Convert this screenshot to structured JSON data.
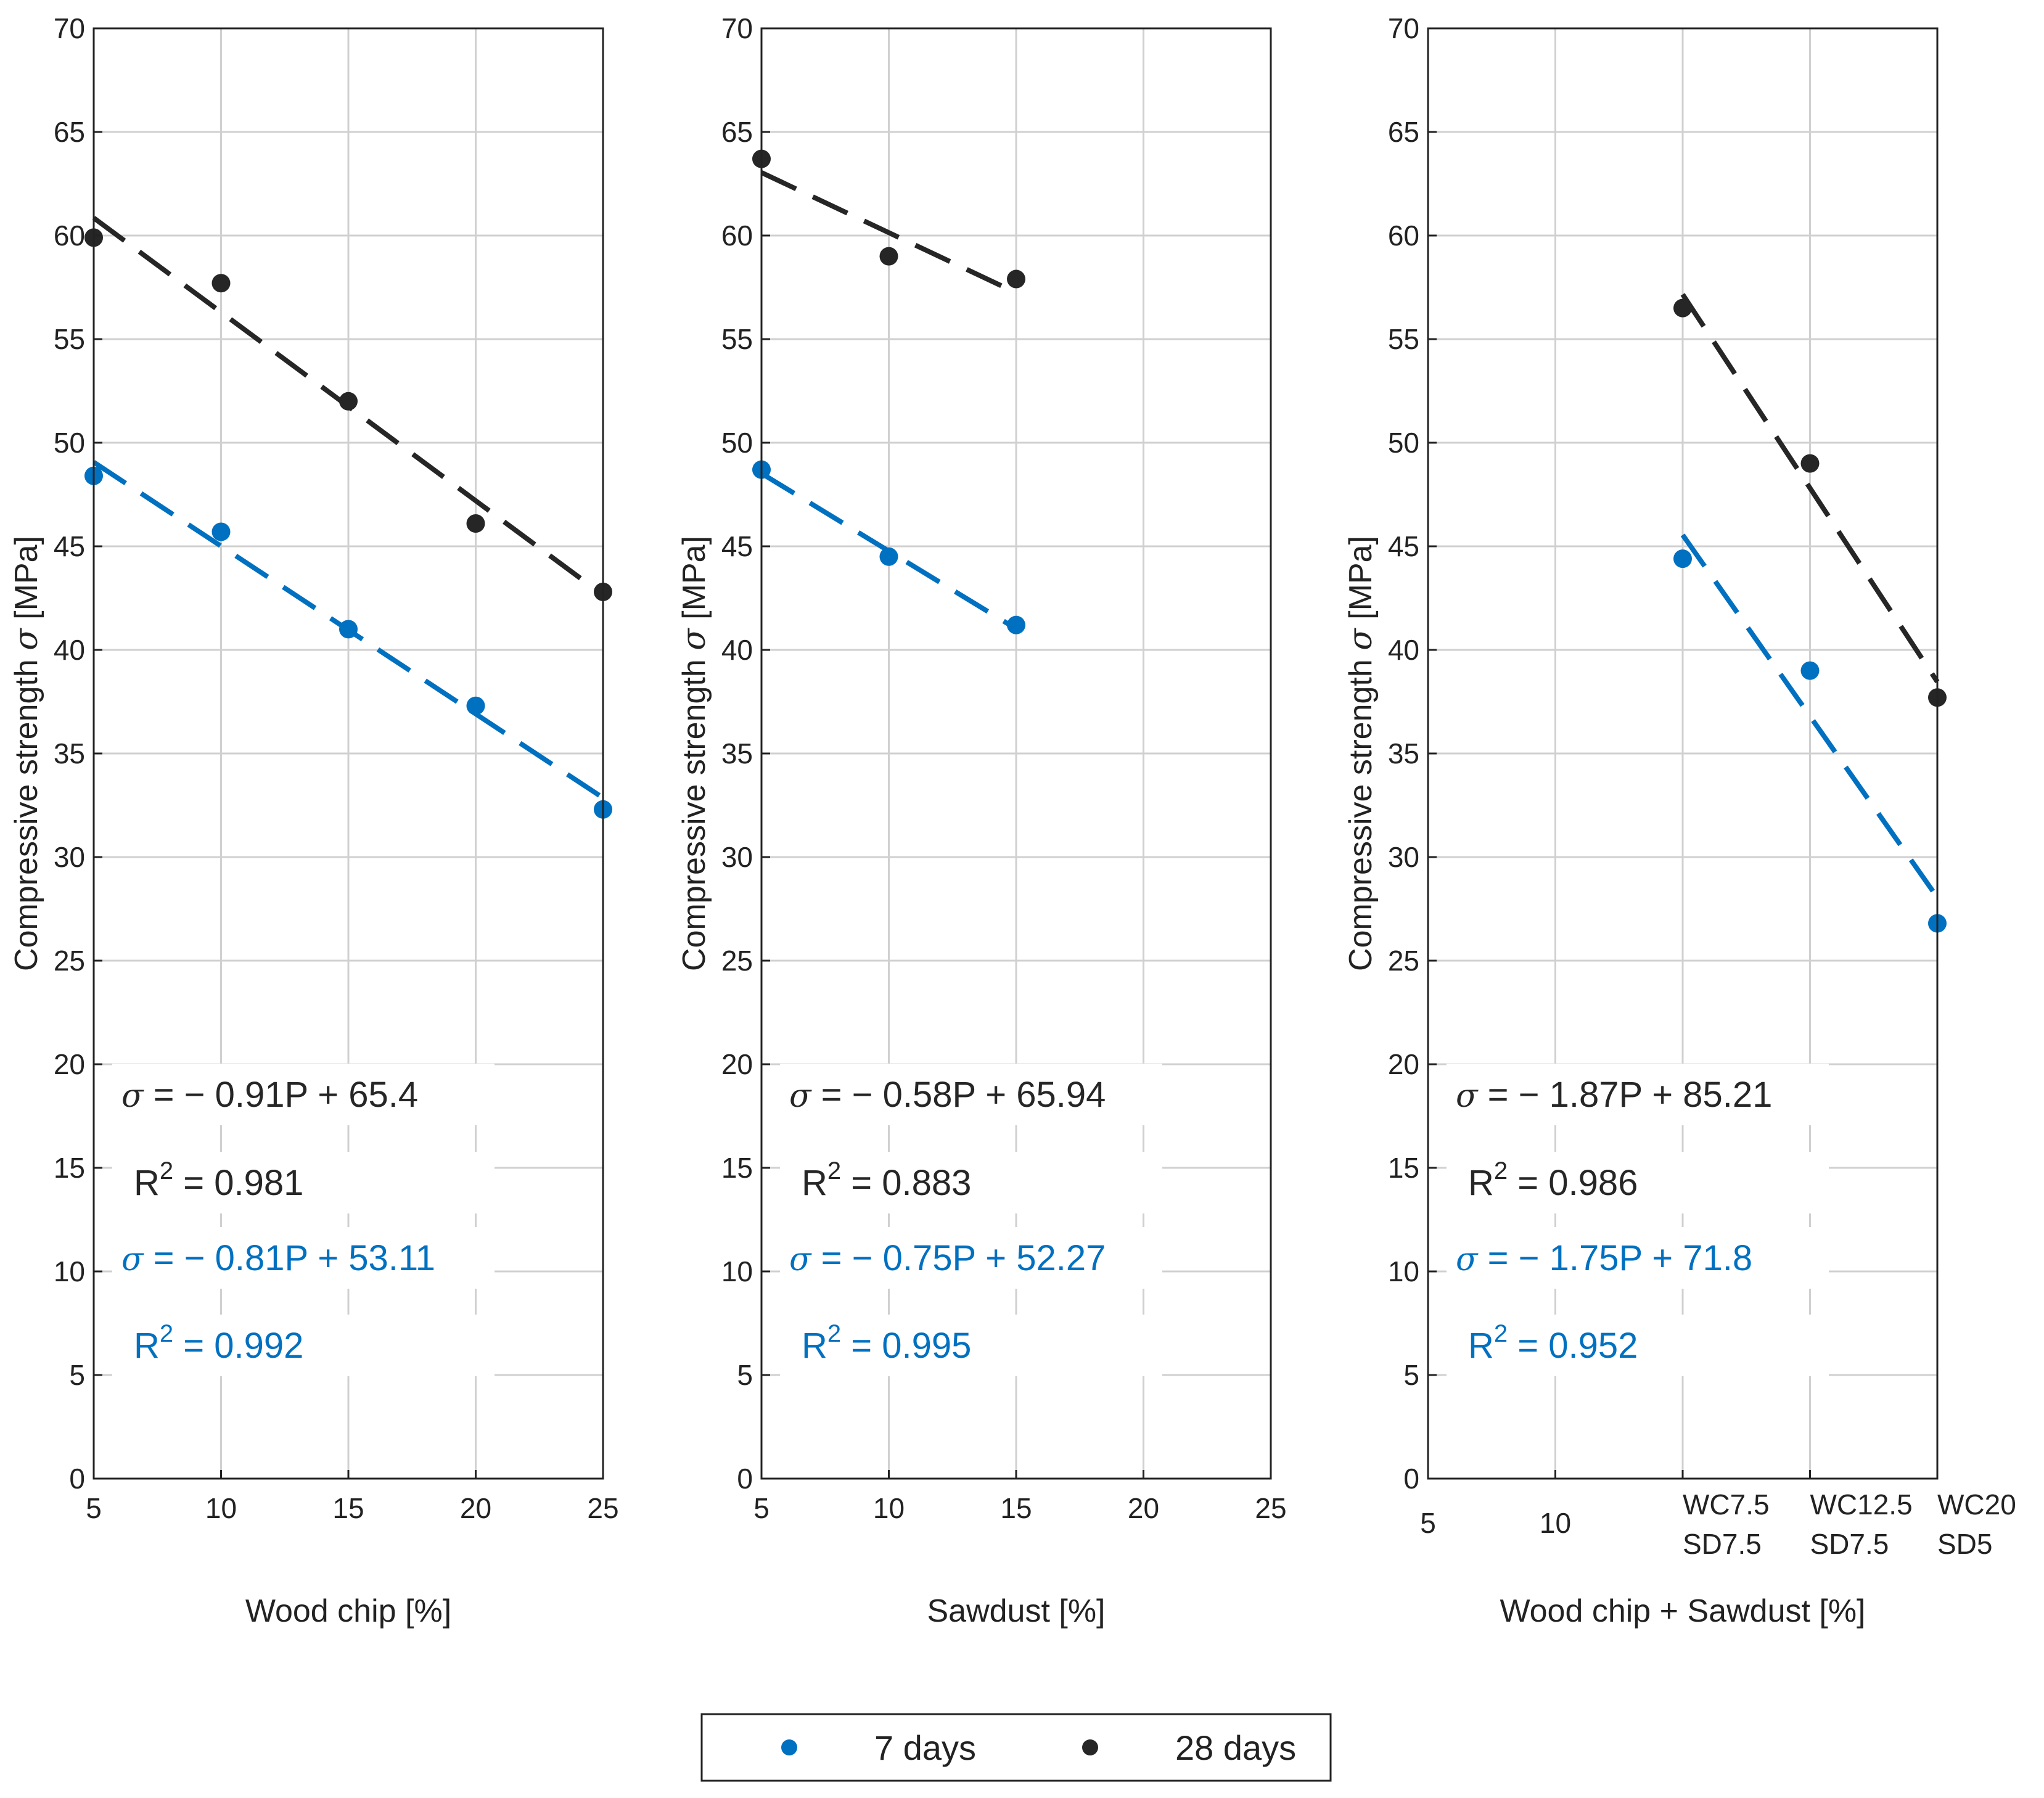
{
  "colors": {
    "d7": "#0070c0",
    "d28": "#262626",
    "grid": "#d0d0d0",
    "axis": "#222222"
  },
  "legend": {
    "items": [
      {
        "label": "7 days",
        "color": "#0070c0"
      },
      {
        "label": "28 days",
        "color": "#262626"
      }
    ]
  },
  "chart_data": [
    {
      "type": "scatter",
      "xlabel": "Wood chip [%]",
      "ylabel_prefix": "Compressive strength ",
      "ylabel_symbol": "σ",
      "ylabel_suffix": " [MPa]",
      "xlim": [
        5,
        25
      ],
      "ylim": [
        0,
        70
      ],
      "xticks": [
        {
          "v": 5,
          "l1": "5",
          "l2": ""
        },
        {
          "v": 10,
          "l1": "10",
          "l2": ""
        },
        {
          "v": 15,
          "l1": "15",
          "l2": ""
        },
        {
          "v": 20,
          "l1": "20",
          "l2": ""
        },
        {
          "v": 25,
          "l1": "25",
          "l2": ""
        }
      ],
      "yticks": [
        0,
        5,
        10,
        15,
        20,
        25,
        30,
        35,
        40,
        45,
        50,
        55,
        60,
        65,
        70
      ],
      "grid": true,
      "series": [
        {
          "name": "7 days",
          "color": "#0070c0",
          "x": [
            5,
            10,
            15,
            20,
            25
          ],
          "y": [
            48.4,
            45.7,
            41.0,
            37.3,
            32.3
          ],
          "fit_x": [
            5,
            25
          ],
          "fit_y": [
            49.06,
            32.86
          ]
        },
        {
          "name": "28 days",
          "color": "#262626",
          "x": [
            5,
            10,
            15,
            20,
            25
          ],
          "y": [
            59.9,
            57.7,
            52.0,
            46.1,
            42.8
          ],
          "fit_x": [
            5,
            25
          ],
          "fit_y": [
            60.85,
            42.65
          ]
        }
      ],
      "annotations": [
        {
          "sym": "σ",
          "text": " = −  0.91P + 65.4",
          "color": "#262626"
        },
        {
          "pre": "R",
          "sup": "2",
          "post": " = 0.981",
          "color": "#262626"
        },
        {
          "sym": "σ",
          "text": " = −  0.81P + 53.11",
          "color": "#0070c0"
        },
        {
          "pre": "R",
          "sup": "2",
          "post": " = 0.992",
          "color": "#0070c0"
        }
      ]
    },
    {
      "type": "scatter",
      "xlabel": "Sawdust [%]",
      "ylabel_prefix": "Compressive strength ",
      "ylabel_symbol": "σ",
      "ylabel_suffix": " [MPa]",
      "xlim": [
        5,
        25
      ],
      "ylim": [
        0,
        70
      ],
      "xticks": [
        {
          "v": 5,
          "l1": "5",
          "l2": ""
        },
        {
          "v": 10,
          "l1": "10",
          "l2": ""
        },
        {
          "v": 15,
          "l1": "15",
          "l2": ""
        },
        {
          "v": 20,
          "l1": "20",
          "l2": ""
        },
        {
          "v": 25,
          "l1": "25",
          "l2": ""
        }
      ],
      "yticks": [
        0,
        5,
        10,
        15,
        20,
        25,
        30,
        35,
        40,
        45,
        50,
        55,
        60,
        65,
        70
      ],
      "grid": true,
      "series": [
        {
          "name": "7 days",
          "color": "#0070c0",
          "x": [
            5,
            10,
            15
          ],
          "y": [
            48.7,
            44.5,
            41.2
          ],
          "fit_x": [
            5,
            15
          ],
          "fit_y": [
            48.52,
            41.02
          ]
        },
        {
          "name": "28 days",
          "color": "#262626",
          "x": [
            5,
            10,
            15
          ],
          "y": [
            63.7,
            59.0,
            57.9
          ],
          "fit_x": [
            5,
            15
          ],
          "fit_y": [
            63.04,
            57.24
          ]
        }
      ],
      "annotations": [
        {
          "sym": "σ",
          "text": " = −  0.58P + 65.94",
          "color": "#262626"
        },
        {
          "pre": "R",
          "sup": "2",
          "post": " = 0.883",
          "color": "#262626"
        },
        {
          "sym": "σ",
          "text": " = −  0.75P + 52.27",
          "color": "#0070c0"
        },
        {
          "pre": "R",
          "sup": "2",
          "post": " = 0.995",
          "color": "#0070c0"
        }
      ]
    },
    {
      "type": "scatter",
      "xlabel": "Wood chip + Sawdust [%]",
      "ylabel_prefix": "Compressive strength ",
      "ylabel_symbol": "σ",
      "ylabel_suffix": " [MPa]",
      "xlim": [
        5,
        25
      ],
      "ylim": [
        0,
        70
      ],
      "xticks": [
        {
          "v": 5,
          "l1": "5",
          "l2": ""
        },
        {
          "v": 10,
          "l1": "10",
          "l2": ""
        },
        {
          "v": 15,
          "l1": "WC7.5",
          "l2": "SD7.5"
        },
        {
          "v": 20,
          "l1": "WC12.5",
          "l2": "SD7.5"
        },
        {
          "v": 25,
          "l1": "WC20",
          "l2": "SD5"
        }
      ],
      "yticks": [
        0,
        5,
        10,
        15,
        20,
        25,
        30,
        35,
        40,
        45,
        50,
        55,
        60,
        65,
        70
      ],
      "grid": true,
      "series": [
        {
          "name": "7 days",
          "color": "#0070c0",
          "x": [
            15,
            20,
            25
          ],
          "y": [
            44.4,
            39.0,
            26.8
          ],
          "fit_x": [
            15,
            25
          ],
          "fit_y": [
            45.55,
            28.05
          ]
        },
        {
          "name": "28 days",
          "color": "#262626",
          "x": [
            15,
            20,
            25
          ],
          "y": [
            56.5,
            49.0,
            37.7
          ],
          "fit_x": [
            15,
            25
          ],
          "fit_y": [
            57.16,
            38.46
          ]
        }
      ],
      "annotations": [
        {
          "sym": "σ",
          "text": " = −  1.87P + 85.21",
          "color": "#262626"
        },
        {
          "pre": "R",
          "sup": "2",
          "post": " = 0.986",
          "color": "#262626"
        },
        {
          "sym": "σ",
          "text": " = −  1.75P + 71.8",
          "color": "#0070c0"
        },
        {
          "pre": "R",
          "sup": "2",
          "post": " = 0.952",
          "color": "#0070c0"
        }
      ]
    }
  ]
}
